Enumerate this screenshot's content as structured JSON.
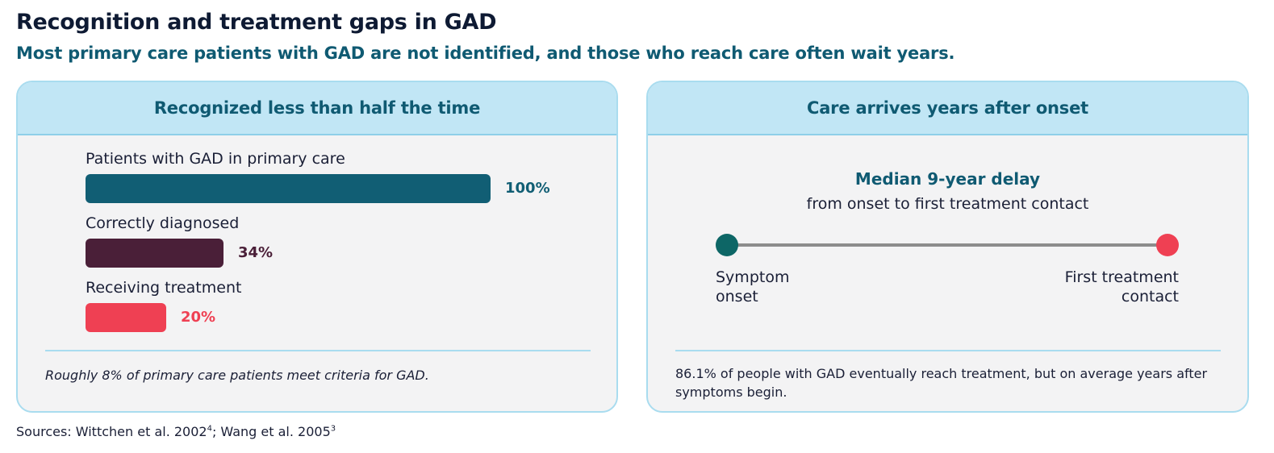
{
  "title": "Recognition and treatment gaps in GAD",
  "subtitle": "Most primary care patients with GAD are not identified, and those who reach care often wait years.",
  "left_panel": {
    "heading": "Recognized less than half the time",
    "footnote": "Roughly 8% of primary care patients meet criteria for GAD."
  },
  "right_panel": {
    "heading": "Care arrives years after onset",
    "delay_title": "Median 9-year delay",
    "delay_subtitle": "from onset to first treatment contact",
    "start_label": "Symptom\nonset",
    "end_label": "First treatment\ncontact",
    "start_color": "#0d6666",
    "end_color": "#ef4053",
    "note": "86.1% of people with GAD eventually reach treatment, but on average years after symptoms begin."
  },
  "chart_data": {
    "type": "bar",
    "orientation": "horizontal",
    "categories": [
      "Patients with GAD in primary care",
      "Correctly diagnosed",
      "Receiving treatment"
    ],
    "values": [
      100,
      34,
      20
    ],
    "value_labels": [
      "100%",
      "34%",
      "20%"
    ],
    "colors": [
      "#115e74",
      "#4a1f38",
      "#ef4053"
    ],
    "xlim": [
      0,
      100
    ],
    "grid": false
  },
  "sources": {
    "prefix": "Sources: Wittchen et al. 2002",
    "ref1": "4",
    "middle": "; Wang et al. 2005",
    "ref2": "3"
  }
}
